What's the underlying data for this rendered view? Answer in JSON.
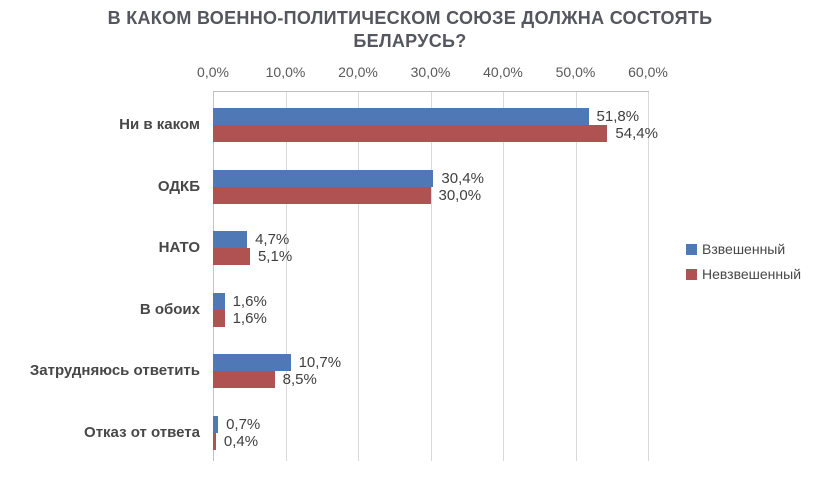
{
  "chart_data": {
    "type": "bar",
    "orientation": "horizontal",
    "title": "В КАКОМ ВОЕННО-ПОЛИТИЧЕСКОМ СОЮЗЕ ДОЛЖНА СОСТОЯТЬ БЕЛАРУСЬ?",
    "categories": [
      "Ни в каком",
      "ОДКБ",
      "НАТО",
      "В обоих",
      "Затрудняюсь ответить",
      "Отказ от ответа"
    ],
    "series": [
      {
        "name": "Взвешенный",
        "color": "#4e79b6",
        "values": [
          51.8,
          30.4,
          4.7,
          1.6,
          10.7,
          0.7
        ],
        "labels": [
          "51,8%",
          "30,4%",
          "4,7%",
          "1,6%",
          "10,7%",
          "0,7%"
        ]
      },
      {
        "name": "Невзвешенный",
        "color": "#b05252",
        "values": [
          54.4,
          30.0,
          5.1,
          1.6,
          8.5,
          0.4
        ],
        "labels": [
          "54,4%",
          "30,0%",
          "5,1%",
          "1,6%",
          "8,5%",
          "0,4%"
        ]
      }
    ],
    "x_ticks": [
      "0,0%",
      "10,0%",
      "20,0%",
      "30,0%",
      "40,0%",
      "50,0%",
      "60,0%"
    ],
    "xlim": [
      0,
      60
    ],
    "grid": true,
    "legend_position": "right"
  },
  "colors": {
    "weighted": "#4e79b6",
    "unweighted": "#b05252",
    "gridline": "#d9d9d9",
    "axis_line": "#bfbfbf",
    "title_text": "#55565e",
    "category_text": "#474747",
    "tick_text": "#595959",
    "value_text": "#3f3f3f"
  }
}
